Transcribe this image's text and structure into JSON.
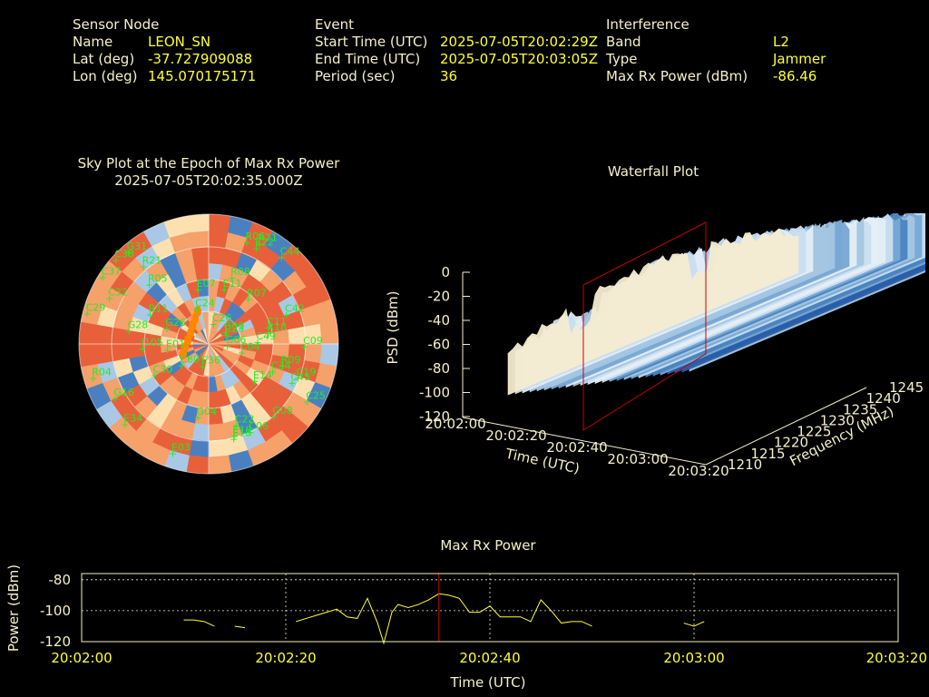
{
  "header": {
    "sensor": {
      "title": "Sensor Node",
      "name_label": "Name",
      "name_value": "LEON_SN",
      "lat_label": "Lat (deg)",
      "lat_value": "-37.727909088",
      "lon_label": "Lon (deg)",
      "lon_value": "145.070175171"
    },
    "event": {
      "title": "Event",
      "start_label": "Start Time (UTC)",
      "start_value": "2025-07-05T20:02:29Z",
      "end_label": "End Time (UTC)",
      "end_value": "2025-07-05T20:03:05Z",
      "period_label": "Period (sec)",
      "period_value": "36"
    },
    "interference": {
      "title": "Interference",
      "band_label": "Band",
      "band_value": "L2",
      "type_label": "Type",
      "type_value": "Jammer",
      "power_label": "Max Rx Power (dBm)",
      "power_value": "-86.46"
    }
  },
  "sky_plot": {
    "title_line1": "Sky Plot at the Epoch of Max Rx Power",
    "title_line2": "2025-07-05T20:02:35.000Z",
    "satellites": [
      "C22",
      "C11",
      "G09",
      "G28",
      "C38",
      "C04",
      "C06",
      "R09",
      "C19",
      "I105",
      "R11",
      "E36",
      "C26",
      "C29",
      "C34",
      "G16",
      "G04",
      "E07",
      "C24",
      "E14",
      "C37",
      "R18",
      "E34",
      "C09",
      "C32",
      "C30",
      "E03",
      "E22",
      "G26",
      "R06",
      "C45",
      "G08",
      "C44",
      "R21",
      "E01",
      "E11",
      "R07",
      "C23",
      "C42",
      "C25",
      "R08",
      "G31",
      "R05",
      "R04",
      "E18",
      "R21",
      "E19",
      "C49",
      "G06",
      "C60"
    ],
    "colors": {
      "hot": "#e8603a",
      "warm": "#f6a06a",
      "pale": "#fde0b0",
      "cool": "#a8c8e6",
      "blue": "#4a80c0",
      "sat": "#22ee22",
      "track": "#ff8800"
    }
  },
  "waterfall": {
    "title": "Waterfall Plot",
    "z_label": "PSD (dBm)",
    "x_label": "Time (UTC)",
    "y_label": "Frequency (MHz)",
    "z_ticks": [
      "0",
      "-20",
      "-40",
      "-60",
      "-80",
      "-100",
      "-120"
    ],
    "x_ticks": [
      "20:02:00",
      "20:02:20",
      "20:02:40",
      "20:03:00",
      "20:03:20"
    ],
    "y_ticks": [
      "1210",
      "1215",
      "1220",
      "1225",
      "1230",
      "1235",
      "1240",
      "1245"
    ],
    "plane_color": "#cc0000"
  },
  "chart_data": {
    "type": "line",
    "title": "Max Rx Power",
    "xlabel": "Time (UTC)",
    "ylabel": "Power (dBm)",
    "xlim": [
      "20:02:00",
      "20:03:20"
    ],
    "ylim": [
      -120,
      -76
    ],
    "x_ticks": [
      "20:02:00",
      "20:02:20",
      "20:02:40",
      "20:03:00",
      "20:03:20"
    ],
    "y_ticks": [
      -80,
      -100,
      -120
    ],
    "grid": true,
    "line_color": "#ffff33",
    "marker_color": "#cc0000",
    "marker_time": "20:02:35",
    "segments": [
      [
        [
          "20:02:10",
          -106
        ],
        [
          "20:02:11",
          -106
        ],
        [
          "20:02:12",
          -107
        ],
        [
          "20:02:13",
          -110
        ]
      ],
      [
        [
          "20:02:15",
          -110
        ],
        [
          "20:02:16",
          -111
        ]
      ],
      [
        [
          "20:02:21",
          -107
        ],
        [
          "20:02:22",
          -105
        ],
        [
          "20:02:23",
          -103
        ],
        [
          "20:02:24",
          -101
        ],
        [
          "20:02:25",
          -99
        ],
        [
          "20:02:26",
          -104
        ],
        [
          "20:02:27",
          -105
        ],
        [
          "20:02:28",
          -92
        ],
        [
          "20:02:29",
          -108
        ],
        [
          "20:02:29.6",
          -121
        ],
        [
          "20:02:30.4",
          -101
        ],
        [
          "20:02:31",
          -96
        ],
        [
          "20:02:32",
          -98
        ],
        [
          "20:02:33",
          -96
        ],
        [
          "20:02:34",
          -93
        ],
        [
          "20:02:35",
          -89
        ],
        [
          "20:02:36",
          -90
        ],
        [
          "20:02:37",
          -92
        ],
        [
          "20:02:38",
          -101
        ],
        [
          "20:02:39",
          -101
        ],
        [
          "20:02:40",
          -97
        ],
        [
          "20:02:41",
          -104
        ],
        [
          "20:02:42",
          -104
        ],
        [
          "20:02:43",
          -104
        ],
        [
          "20:02:44",
          -107
        ],
        [
          "20:02:45",
          -93
        ],
        [
          "20:02:46",
          -100
        ],
        [
          "20:02:47",
          -108
        ],
        [
          "20:02:48",
          -107
        ],
        [
          "20:02:49",
          -107
        ],
        [
          "20:02:50",
          -110
        ]
      ],
      [
        [
          "20:02:59",
          -108
        ],
        [
          "20:03:00",
          -110
        ],
        [
          "20:03:01",
          -107
        ]
      ]
    ]
  }
}
